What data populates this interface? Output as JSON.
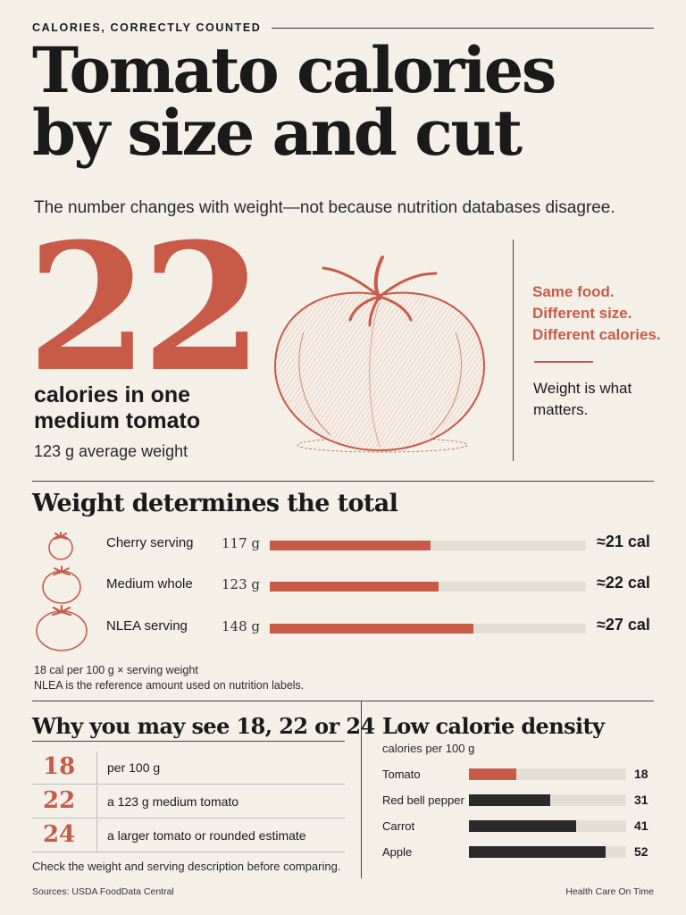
{
  "kicker": "CALORIES, CORRECTLY COUNTED",
  "title_line1": "Tomato calories",
  "title_line2": "by size and cut",
  "subtitle": "The number changes with weight—not because nutrition databases disagree.",
  "hero": {
    "number": "22",
    "label_line1": "calories in one",
    "label_line2": "medium tomato",
    "sub": "123 g average weight",
    "side_red": [
      "Same food.",
      "Different size.",
      "Different calories."
    ],
    "side_black_line1": "Weight is what",
    "side_black_line2": "matters."
  },
  "weight_section": {
    "title": "Weight determines the total",
    "max_grams": 230,
    "rows": [
      {
        "label": "Cherry serving",
        "grams_text": "117 g",
        "grams": 117,
        "cal": "≈21 cal"
      },
      {
        "label": "Medium whole",
        "grams_text": "123 g",
        "grams": 123,
        "cal": "≈22 cal"
      },
      {
        "label": "NLEA serving",
        "grams_text": "148 g",
        "grams": 148,
        "cal": "≈27 cal"
      }
    ],
    "formula": "18 cal per 100 g × serving weight",
    "note": "NLEA is the reference amount used on nutrition labels."
  },
  "why_section": {
    "title": "Why you may see 18, 22 or 24",
    "rows": [
      {
        "num": "18",
        "text": "per 100 g"
      },
      {
        "num": "22",
        "text": "a 123 g medium tomato"
      },
      {
        "num": "24",
        "text": "a larger tomato or rounded estimate"
      }
    ],
    "note": "Check the weight and serving description before comparing."
  },
  "density_section": {
    "title": "Low calorie density",
    "subtitle": "calories per 100 g",
    "max": 60,
    "rows": [
      {
        "label": "Tomato",
        "value": 18,
        "value_text": "18",
        "highlight": true
      },
      {
        "label": "Red bell pepper",
        "value": 31,
        "value_text": "31",
        "highlight": false
      },
      {
        "label": "Carrot",
        "value": 41,
        "value_text": "41",
        "highlight": false
      },
      {
        "label": "Apple",
        "value": 52,
        "value_text": "52",
        "highlight": false
      }
    ]
  },
  "footer": {
    "sources": "Sources: USDA FoodData Central",
    "brand": "Health Care On Time"
  },
  "colors": {
    "accent": "#c75b48",
    "background": "#f4f0e8",
    "ink": "#1a1a1a",
    "track": "#e3dfd7"
  },
  "icons": [
    "tomato-illustration",
    "small-tomato-icon",
    "medium-tomato-icon",
    "large-tomato-icon"
  ]
}
